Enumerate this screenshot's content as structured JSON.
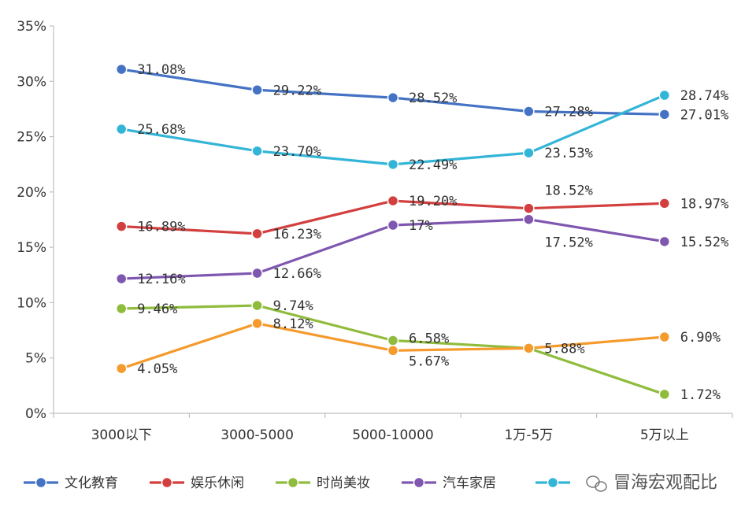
{
  "chart_data": {
    "type": "line",
    "title": "",
    "xlabel": "",
    "ylabel": "",
    "ylim": [
      0,
      35
    ],
    "yticks": [
      0,
      5,
      10,
      15,
      20,
      25,
      30,
      35
    ],
    "ytick_suffix": "%",
    "categories": [
      "3000以下",
      "3000-5000",
      "5000-10000",
      "1万-5万",
      "5万以上"
    ],
    "legend_position": "bottom",
    "grid": false,
    "series": [
      {
        "name": "文化教育",
        "color": "#4472c4",
        "values": [
          31.08,
          29.22,
          28.52,
          27.28,
          27.01
        ],
        "labels": [
          "31.08%",
          "29.22%",
          "28.52%",
          "27.28%",
          "27.01%"
        ]
      },
      {
        "name": "娱乐休闲",
        "color": "#d33f3f",
        "values": [
          16.89,
          16.23,
          19.2,
          18.52,
          18.97
        ],
        "labels": [
          "16.89%",
          "16.23%",
          "19.20%",
          "18.52%",
          "18.97%"
        ]
      },
      {
        "name": "时尚美妆",
        "color": "#8fbc3c",
        "values": [
          9.46,
          9.74,
          6.58,
          5.88,
          1.72
        ],
        "labels": [
          "9.46%",
          "9.74%",
          "6.58%",
          "5.88%",
          "1.72%"
        ]
      },
      {
        "name": "汽车家居",
        "color": "#7f57b0",
        "values": [
          12.16,
          12.66,
          17,
          17.52,
          15.52
        ],
        "labels": [
          "12.16%",
          "12.66%",
          "17%",
          "17.52%",
          "15.52%"
        ]
      },
      {
        "name": "",
        "color": "#33b5d8",
        "values": [
          25.68,
          23.7,
          22.49,
          23.53,
          28.74
        ],
        "labels": [
          "25.68%",
          "23.70%",
          "22.49%",
          "23.53%",
          "28.74%"
        ]
      },
      {
        "name": "",
        "color": "#f59a2c",
        "values": [
          4.05,
          8.12,
          5.67,
          5.88,
          6.9
        ],
        "labels": [
          "4.05%",
          "8.12%",
          "5.67%",
          "",
          "6.90%"
        ]
      }
    ]
  },
  "watermark": {
    "text": "冒海宏观配比",
    "icon": "wechat-icon"
  }
}
